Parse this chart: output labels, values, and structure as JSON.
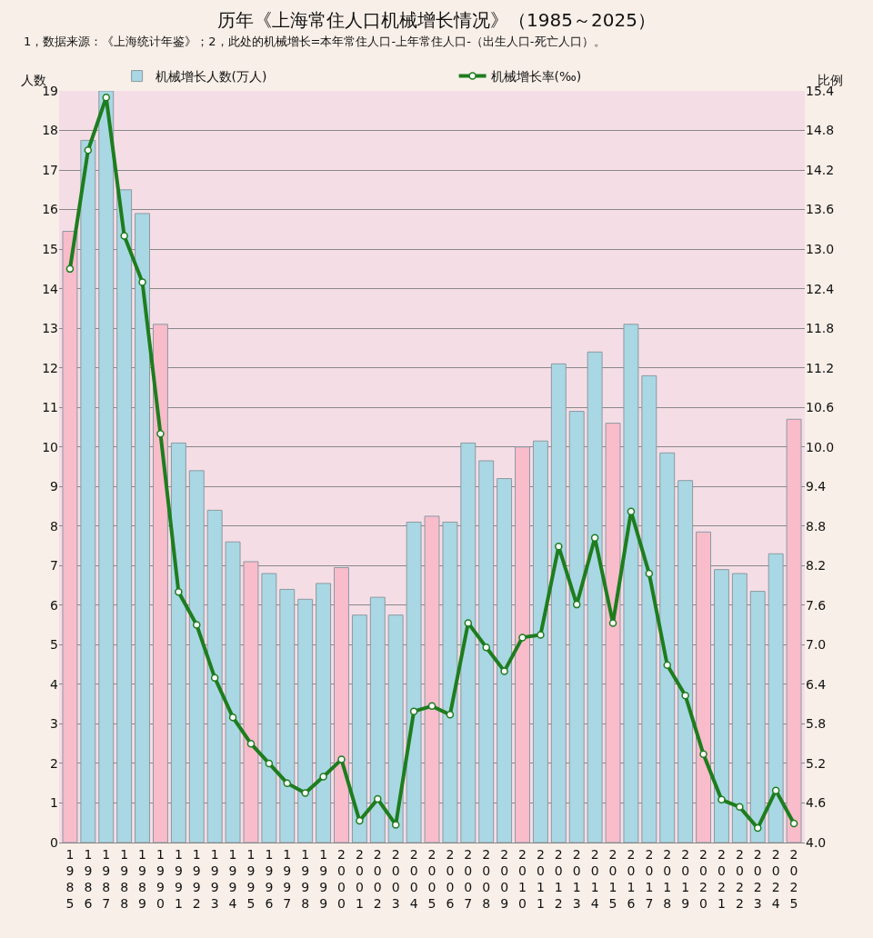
{
  "chart_data": {
    "type": "bar",
    "title": "历年《上海常住人口机械增长情况》（1985～2025）",
    "subtitle": "1，数据来源：《上海统计年鉴》；2，此处的机械增长=本年常住人口-上年常住人口-（出生人口-死亡人口）。",
    "ylabel": "人数",
    "y2label": "比例",
    "categories": [
      "1985",
      "1986",
      "1987",
      "1988",
      "1989",
      "1990",
      "1991",
      "1992",
      "1993",
      "1994",
      "1995",
      "1996",
      "1997",
      "1998",
      "1999",
      "2000",
      "2001",
      "2002",
      "2003",
      "2004",
      "2005",
      "2006",
      "2007",
      "2008",
      "2009",
      "2010",
      "2011",
      "2012",
      "2013",
      "2014",
      "2015",
      "2016",
      "2017",
      "2018",
      "2019",
      "2020",
      "2021",
      "2022",
      "2023",
      "2024",
      "2025"
    ],
    "series": [
      {
        "name": "机械增长人数(万人)",
        "color": "#a9d7e3",
        "colors": [
          "#f8bccb",
          "#a9d7e3",
          "#a9d7e3",
          "#a9d7e3",
          "#a9d7e3",
          "#f8bccb",
          "#a9d7e3",
          "#a9d7e3",
          "#a9d7e3",
          "#a9d7e3",
          "#f8bccb",
          "#a9d7e3",
          "#a9d7e3",
          "#a9d7e3",
          "#a9d7e3",
          "#f8bccb",
          "#a9d7e3",
          "#a9d7e3",
          "#a9d7e3",
          "#a9d7e3",
          "#f8bccb",
          "#a9d7e3",
          "#a9d7e3",
          "#a9d7e3",
          "#a9d7e3",
          "#f8bccb",
          "#a9d7e3",
          "#a9d7e3",
          "#a9d7e3",
          "#a9d7e3",
          "#f8bccb",
          "#a9d7e3",
          "#a9d7e3",
          "#a9d7e3",
          "#a9d7e3",
          "#f8bccb",
          "#a9d7e3",
          "#a9d7e3",
          "#a9d7e3",
          "#a9d7e3",
          "#f8bccb"
        ],
        "values": [
          15.45,
          17.75,
          19.0,
          16.5,
          15.9,
          13.1,
          10.1,
          9.4,
          8.4,
          7.6,
          7.1,
          6.8,
          6.4,
          6.15,
          6.55,
          6.95,
          5.75,
          6.2,
          5.75,
          8.1,
          8.25,
          8.1,
          10.1,
          9.65,
          9.2,
          10.0,
          10.15,
          12.1,
          10.9,
          12.4,
          10.6,
          13.1,
          11.8,
          9.85,
          9.15,
          7.85,
          6.9,
          6.8,
          6.35,
          7.3,
          10.7
        ]
      },
      {
        "name": "机械增长率(‰)",
        "type": "line",
        "axis": "y2",
        "color": "#1e7d1e",
        "marker": "circle",
        "line_style": "solid",
        "values": [
          12.7,
          14.5,
          15.3,
          13.2,
          12.5,
          10.2,
          7.8,
          7.3,
          6.5,
          5.9,
          5.5,
          5.2,
          4.9,
          4.75,
          5.0,
          5.26,
          4.33,
          4.66,
          4.27,
          5.99,
          6.07,
          5.94,
          7.33,
          6.96,
          6.6,
          7.11,
          7.15,
          8.49,
          7.61,
          8.62,
          7.33,
          9.02,
          8.08,
          6.69,
          6.23,
          5.34,
          4.65,
          4.54,
          4.22,
          4.79,
          4.29
        ]
      }
    ],
    "ylim": [
      0,
      19
    ],
    "yticks": [
      0,
      1,
      2,
      3,
      4,
      5,
      6,
      7,
      8,
      9,
      10,
      11,
      12,
      13,
      14,
      15,
      16,
      17,
      18,
      19
    ],
    "y2lim": [
      4.0,
      15.4
    ],
    "y2ticks": [
      {
        "value": 4,
        "label": "4.0"
      },
      4.6,
      5.2,
      5.8,
      6.4,
      {
        "value": 7,
        "label": "7.0"
      },
      7.6,
      8.2,
      8.8,
      9.4,
      {
        "value": 10,
        "label": "10.0"
      },
      10.6,
      11.2,
      11.8,
      12.4,
      {
        "value": 13,
        "label": "13.0"
      },
      13.6,
      14.2,
      14.8,
      15.4
    ],
    "grid": "y",
    "legend": "top"
  }
}
